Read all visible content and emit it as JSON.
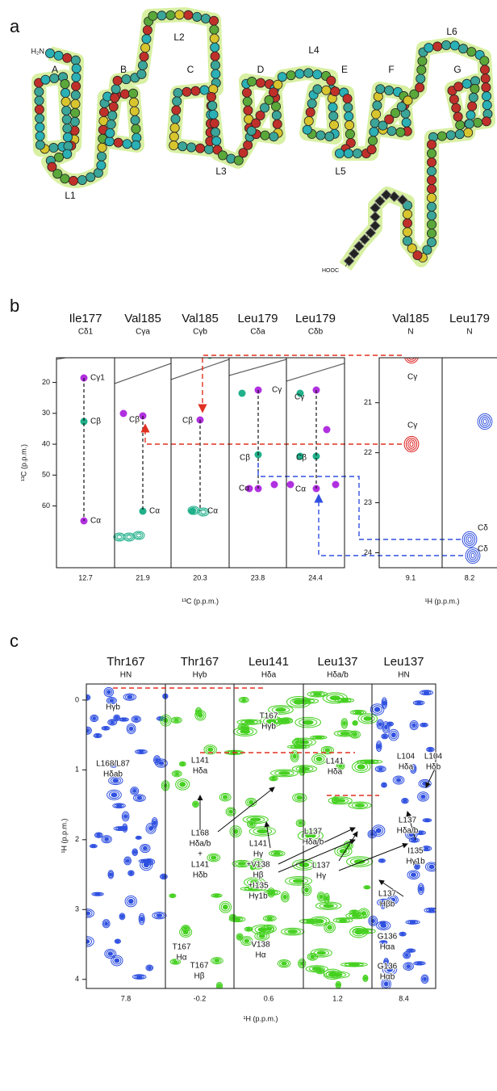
{
  "panel_a": {
    "label": "a",
    "helices": [
      "A",
      "B",
      "C",
      "D",
      "E",
      "F",
      "G"
    ],
    "loops": [
      "L1",
      "L2",
      "L3",
      "L4",
      "L5",
      "L6"
    ],
    "n_terminus": "H₂N",
    "c_terminus": "HOOC"
  },
  "panel_b": {
    "label": "b",
    "strips": [
      {
        "residue": "Ile177",
        "atom": "Cδ1",
        "shift": 12.7
      },
      {
        "residue": "Val185",
        "atom": "Cγa",
        "shift": 21.9
      },
      {
        "residue": "Val185",
        "atom": "Cγb",
        "shift": 20.3
      },
      {
        "residue": "Leu179",
        "atom": "Cδa",
        "shift": 23.8
      },
      {
        "residue": "Leu179",
        "atom": "Cδb",
        "shift": 24.4
      }
    ],
    "h_strips": [
      {
        "residue": "Val185",
        "atom": "N",
        "shift": 9.1
      },
      {
        "residue": "Leu179",
        "atom": "N",
        "shift": 8.2
      }
    ],
    "y_title": "¹³C (p.p.m.)",
    "ylim": [
      12,
      80
    ],
    "yticks": [
      20,
      30,
      40,
      50,
      60
    ],
    "x_title": "¹³C (p.p.m.)",
    "h_x_title": "¹H (p.p.m.)",
    "h_ylim": [
      20.1,
      24.3
    ],
    "h_yticks": [
      21,
      22,
      23,
      24
    ],
    "annotations": [
      [
        "Cγ1"
      ],
      [
        "Cβ"
      ],
      [
        "Cα"
      ],
      [
        "Cβ"
      ],
      [
        "Cα"
      ],
      [
        "Cβ"
      ],
      [
        "Cα"
      ],
      [
        "Cγ"
      ],
      [
        "Cβ"
      ],
      [
        "Cα"
      ],
      [
        "Cγ"
      ],
      [
        "Cβ"
      ],
      [
        "Cα"
      ],
      [
        "Cγ"
      ],
      [
        "Cγ"
      ],
      [
        "Cδ"
      ],
      [
        "Cδ"
      ]
    ]
  },
  "panel_c": {
    "label": "c",
    "strips": [
      {
        "residue": "Thr167",
        "atom": "HN",
        "shift": 7.8
      },
      {
        "residue": "Thr167",
        "atom": "Hγb",
        "shift": -0.2
      },
      {
        "residue": "Leu141",
        "atom": "Hδa",
        "shift": 0.6
      },
      {
        "residue": "Leu137",
        "atom": "Hδa/b",
        "shift": 1.2
      },
      {
        "residue": "Leu137",
        "atom": "HN",
        "shift": 8.4
      }
    ],
    "y_title": "¹H (p.p.m.)",
    "x_title": "¹H (p.p.m.)",
    "ylim": [
      -0.23,
      4.13
    ],
    "yticks": [
      0,
      1,
      2,
      3,
      4
    ],
    "annotations": [
      [
        "Hγb"
      ],
      [
        "L168/L87",
        "Hδab"
      ],
      [
        "L141",
        "Hδa"
      ],
      [
        "L168",
        "Hδa/b",
        "+",
        "L141",
        "Hδb"
      ],
      [
        "T167",
        "Hα"
      ],
      [
        "T167",
        "Hβ"
      ],
      [
        "T167",
        "Hγb"
      ],
      [
        "L141",
        "Hγ",
        "+V138",
        "Hβ",
        "+I135",
        "Hγ1b"
      ],
      [
        "V138",
        "Hα"
      ],
      [
        "L141",
        "Hδa"
      ],
      [
        "L137",
        "Hδa/b"
      ],
      [
        "L137",
        "Hγ"
      ],
      [
        "L104",
        "Hδa"
      ],
      [
        "L104",
        "Hδb"
      ],
      [
        "L137",
        "Hδa/b"
      ],
      [
        "I135",
        "Hγ1b"
      ],
      [
        "L137",
        "Hβb"
      ],
      [
        "G136",
        "Hαa"
      ],
      [
        "G136",
        "Hαb"
      ]
    ]
  }
}
